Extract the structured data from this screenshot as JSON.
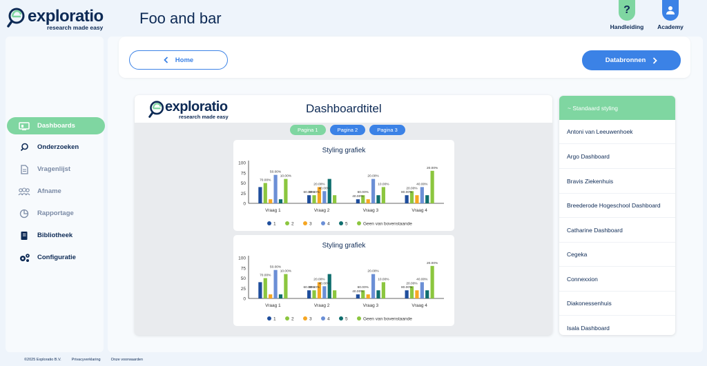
{
  "brand": {
    "name": "exploratio",
    "tagline": "research made easy"
  },
  "header": {
    "title": "Foo and bar",
    "buttons": [
      {
        "label": "Handleiding",
        "icon": "question-icon",
        "color": "#7fd6a1"
      },
      {
        "label": "Academy",
        "icon": "user-icon",
        "color": "#3b82e6"
      }
    ]
  },
  "sidebar": {
    "items": [
      {
        "label": "Dashboards",
        "icon": "dashboard-icon",
        "active": true
      },
      {
        "label": "Onderzoeken",
        "icon": "search-icon",
        "active": false
      },
      {
        "label": "Vragenlijst",
        "icon": "document-icon",
        "active": false
      },
      {
        "label": "Afname",
        "icon": "users-icon",
        "active": false
      },
      {
        "label": "Rapportage",
        "icon": "pie-icon",
        "active": false
      },
      {
        "label": "Bibliotheek",
        "icon": "book-icon",
        "active": false
      },
      {
        "label": "Configuratie",
        "icon": "gears-icon",
        "active": false
      }
    ]
  },
  "toolbar": {
    "home_label": "Home",
    "next_label": "Databronnen"
  },
  "dashboard": {
    "title": "Dashboardtitel",
    "pages": [
      {
        "label": "Pagina 1",
        "active": true
      },
      {
        "label": "Pagina 2",
        "active": false
      },
      {
        "label": "Pagina 3",
        "active": false
      }
    ]
  },
  "chart_data": [
    {
      "type": "bar",
      "title": "Styling grafiek",
      "categories": [
        "Vraag 1",
        "Vraag 2",
        "Vraag 3",
        "Vraag 4"
      ],
      "ylim": [
        0,
        100
      ],
      "yticks": [
        0,
        25,
        50,
        75,
        100
      ],
      "legend": "bottom",
      "series": [
        {
          "name": "1",
          "color": "#1f4e9c",
          "values": [
            40,
            20,
            10,
            20
          ]
        },
        {
          "name": "2",
          "color": "#8cc63f",
          "values": [
            50,
            20,
            20,
            30
          ]
        },
        {
          "name": "3",
          "color": "#f5a623",
          "values": [
            10,
            40,
            10,
            20
          ]
        },
        {
          "name": "4",
          "color": "#6b8fd6",
          "values": [
            70,
            30,
            60,
            40
          ]
        },
        {
          "name": "5",
          "color": "#0f6e6e",
          "values": [
            10,
            60,
            20,
            20
          ]
        },
        {
          "name": "Geen van bovenstaande",
          "color": "#8cc63f",
          "values": [
            60,
            20,
            40,
            80
          ]
        }
      ],
      "data_labels": [
        [
          "50.00%",
          "10.00%",
          "70.00%"
        ],
        [
          "20.00%",
          "40.00%",
          "60.00%",
          "20.00%"
        ],
        [
          "20.00%",
          "10.00%",
          "60.00%",
          "40.00%"
        ],
        [
          "20.00%",
          "40.00%",
          "20.00%",
          "80.00%"
        ]
      ]
    },
    {
      "type": "bar",
      "title": "Styling grafiek",
      "categories": [
        "Vraag 1",
        "Vraag 2",
        "Vraag 3",
        "Vraag 4"
      ],
      "ylim": [
        0,
        100
      ],
      "yticks": [
        0,
        25,
        50,
        75,
        100
      ],
      "legend": "bottom",
      "series": [
        {
          "name": "1",
          "color": "#1f4e9c",
          "values": [
            40,
            20,
            10,
            20
          ]
        },
        {
          "name": "2",
          "color": "#8cc63f",
          "values": [
            50,
            20,
            20,
            30
          ]
        },
        {
          "name": "3",
          "color": "#f5a623",
          "values": [
            10,
            40,
            10,
            20
          ]
        },
        {
          "name": "4",
          "color": "#6b8fd6",
          "values": [
            70,
            30,
            60,
            40
          ]
        },
        {
          "name": "5",
          "color": "#0f6e6e",
          "values": [
            10,
            60,
            20,
            20
          ]
        },
        {
          "name": "Geen van bovenstaande",
          "color": "#8cc63f",
          "values": [
            60,
            20,
            40,
            80
          ]
        }
      ],
      "data_labels": [
        [
          "50.00%",
          "10.00%",
          "70.00%"
        ],
        [
          "20.00%",
          "40.00%",
          "60.00%",
          "20.00%"
        ],
        [
          "20.00%",
          "10.00%",
          "60.00%",
          "40.00%"
        ],
        [
          "20.00%",
          "40.00%",
          "20.00%",
          "80.00%"
        ]
      ]
    }
  ],
  "styling_list": {
    "header": "~ Standaard styling",
    "items": [
      "Antoni van Leeuwenhoek",
      "Argo Dashboard",
      "Bravis Ziekenhuis",
      "Breederode Hogeschool Dashboard",
      "Catharine Dashboard",
      "Cegeka",
      "Connexxion",
      "Diakonessenhuis",
      "Isala Dashboard"
    ]
  },
  "footer": {
    "copyright": "©2025 Exploratio B.V.",
    "privacy": "Privacyverklaring",
    "terms": "Onze voorwaarden"
  }
}
